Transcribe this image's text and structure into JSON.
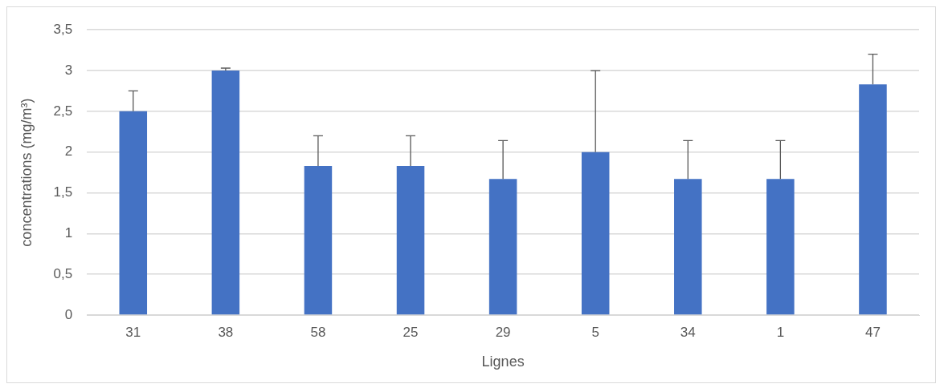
{
  "chart_data": {
    "type": "bar",
    "xlabel": "Lignes",
    "ylabel": "concentrations (mg/m³)",
    "categories": [
      "31",
      "38",
      "58",
      "25",
      "29",
      "5",
      "34",
      "1",
      "47"
    ],
    "values": [
      2.5,
      3.0,
      1.83,
      1.83,
      1.67,
      2.0,
      1.67,
      1.67,
      2.83
    ],
    "errors": [
      [
        2.5,
        2.75
      ],
      [
        3.0,
        3.03
      ],
      [
        1.83,
        2.2
      ],
      [
        1.83,
        2.2
      ],
      [
        1.67,
        2.14
      ],
      [
        2.0,
        3.0
      ],
      [
        1.67,
        2.14
      ],
      [
        1.67,
        2.14
      ],
      [
        2.83,
        3.2
      ]
    ],
    "color": "#4472c4",
    "ylim": [
      0,
      3.5
    ],
    "yticks": [
      {
        "value": 0,
        "label": "0"
      },
      {
        "value": 0.5,
        "label": "0,5"
      },
      {
        "value": 1,
        "label": "1"
      },
      {
        "value": 1.5,
        "label": "1,5"
      },
      {
        "value": 2,
        "label": "2"
      },
      {
        "value": 2.5,
        "label": "2,5"
      },
      {
        "value": 3,
        "label": "3"
      },
      {
        "value": 3.5,
        "label": "3,5"
      }
    ],
    "grid": "y",
    "legend": false
  }
}
